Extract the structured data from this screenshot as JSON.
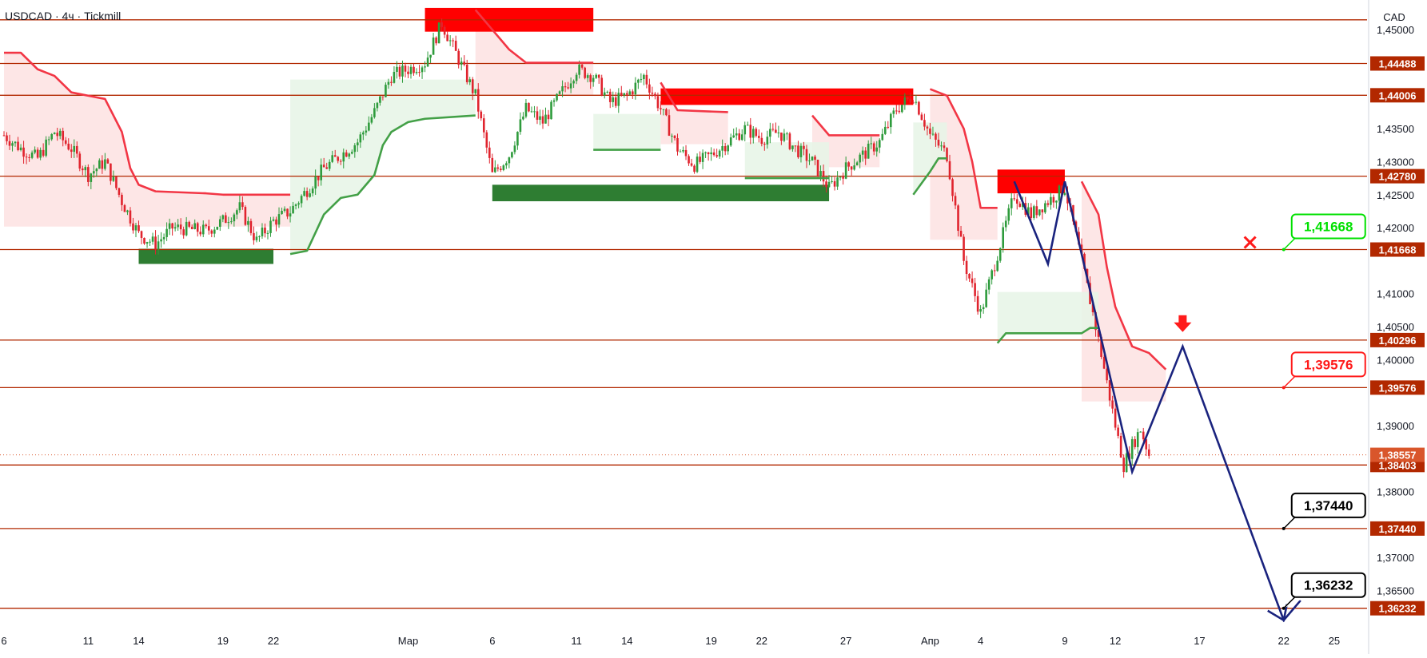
{
  "header": {
    "symbol_line": "USDCAD · 4ч · Tickmill"
  },
  "currency_label": "CAD",
  "colors": {
    "level": "#b22800",
    "up": "#2e9b3c",
    "down": "#e0242e",
    "supply": "#ff0000",
    "demand": "#2e7d32",
    "stop_up": "#43a047",
    "stop_down": "#f23645",
    "fill_down": "#fde2e2",
    "fill_up": "#e6f4e6",
    "projection": "#1a237e",
    "callout_green": "#00e000",
    "callout_red": "#ff1a1a",
    "callout_black": "#000000",
    "last_price_tag": "#d9562b"
  },
  "chart_data": {
    "type": "candlestick",
    "symbol": "USDCAD",
    "timeframe": "4ч",
    "broker": "Tickmill",
    "currency": "CAD",
    "x_axis": {
      "tick_labels": [
        "6",
        "11",
        "14",
        "19",
        "22",
        "Мар",
        "6",
        "11",
        "14",
        "19",
        "22",
        "27",
        "Апр",
        "4",
        "9",
        "12",
        "17",
        "22",
        "25"
      ],
      "range_dates": [
        "2024-02-06",
        "2024-04-26"
      ]
    },
    "y_axis": {
      "range": [
        1.3595,
        1.4545
      ],
      "tick_labels": [
        "1,45000",
        "1,43500",
        "1,43000",
        "1,42500",
        "1,42000",
        "1,41000",
        "1,40500",
        "1,40000",
        "1,39000",
        "1,38000",
        "1,37000",
        "1,36500"
      ],
      "tick_values": [
        1.45,
        1.435,
        1.43,
        1.425,
        1.42,
        1.41,
        1.405,
        1.4,
        1.39,
        1.38,
        1.37,
        1.365
      ]
    },
    "levels": [
      {
        "value": 1.4515,
        "label": ""
      },
      {
        "value": 1.44488,
        "label": "1,44488"
      },
      {
        "value": 1.44006,
        "label": "1,44006"
      },
      {
        "value": 1.4278,
        "label": "1,42780"
      },
      {
        "value": 1.41668,
        "label": "1,41668"
      },
      {
        "value": 1.40296,
        "label": "1,40296"
      },
      {
        "value": 1.39576,
        "label": "1,39576"
      },
      {
        "value": 1.38403,
        "label": "1,38403"
      },
      {
        "value": 1.3744,
        "label": "1,37440"
      },
      {
        "value": 1.36232,
        "label": "1,36232"
      }
    ],
    "last_price": {
      "value": 1.38557,
      "label": "1,38557"
    },
    "callouts": [
      {
        "label": "1,41668",
        "value": 1.41668,
        "color": "green",
        "x_date": "2024-04-22",
        "marker": "cross",
        "marker_date": "2024-04-20"
      },
      {
        "label": "1,39576",
        "value": 1.39576,
        "color": "red",
        "x_date": "2024-04-22"
      },
      {
        "label": "1,37440",
        "value": 1.3744,
        "color": "black",
        "x_date": "2024-04-22"
      },
      {
        "label": "1,36232",
        "value": 1.36232,
        "color": "black",
        "x_date": "2024-04-22"
      }
    ],
    "zones": [
      {
        "kind": "supply",
        "from": "2024-03-02",
        "to": "2024-03-12",
        "top": 1.4533,
        "bottom": 1.4497
      },
      {
        "kind": "supply",
        "from": "2024-03-16",
        "to": "2024-03-31",
        "top": 1.4411,
        "bottom": 1.4386
      },
      {
        "kind": "supply",
        "from": "2024-04-05",
        "to": "2024-04-09",
        "top": 1.4288,
        "bottom": 1.4252
      },
      {
        "kind": "demand",
        "from": "2024-02-14",
        "to": "2024-02-22",
        "top": 1.4168,
        "bottom": 1.4145
      },
      {
        "kind": "demand",
        "from": "2024-03-06",
        "to": "2024-03-26",
        "top": 1.4265,
        "bottom": 1.424
      }
    ],
    "stop_lines": {
      "down": [
        [
          [
            "2024-02-06",
            1.4465
          ],
          [
            "2024-02-07",
            1.4465
          ],
          [
            "2024-02-08",
            1.444
          ],
          [
            "2024-02-09",
            1.443
          ],
          [
            "2024-02-10",
            1.4405
          ],
          [
            "2024-02-12",
            1.4395
          ],
          [
            "2024-02-13",
            1.4345
          ],
          [
            "2024-02-13T12",
            1.429
          ],
          [
            "2024-02-14",
            1.4265
          ],
          [
            "2024-02-15",
            1.4255
          ],
          [
            "2024-02-18",
            1.4252
          ],
          [
            "2024-02-19",
            1.425
          ],
          [
            "2024-02-23",
            1.425
          ]
        ],
        [
          [
            "2024-03-05",
            1.453
          ],
          [
            "2024-03-06",
            1.45
          ],
          [
            "2024-03-07",
            1.447
          ],
          [
            "2024-03-08",
            1.445
          ],
          [
            "2024-03-12",
            1.445
          ]
        ],
        [
          [
            "2024-03-16",
            1.442
          ],
          [
            "2024-03-17",
            1.4378
          ],
          [
            "2024-03-20",
            1.4375
          ]
        ],
        [
          [
            "2024-03-25",
            1.437
          ],
          [
            "2024-03-26",
            1.434
          ],
          [
            "2024-03-29",
            1.434
          ]
        ],
        [
          [
            "2024-04-01",
            1.441
          ],
          [
            "2024-04-02",
            1.44
          ],
          [
            "2024-04-03",
            1.435
          ],
          [
            "2024-04-03T12",
            1.43
          ],
          [
            "2024-04-04",
            1.423
          ],
          [
            "2024-04-05",
            1.423
          ]
        ],
        [
          [
            "2024-04-10",
            1.427
          ],
          [
            "2024-04-11",
            1.422
          ],
          [
            "2024-04-11T12",
            1.414
          ],
          [
            "2024-04-12",
            1.408
          ],
          [
            "2024-04-13",
            1.402
          ],
          [
            "2024-04-14",
            1.401
          ],
          [
            "2024-04-15",
            1.3985
          ]
        ]
      ],
      "up": [
        [
          [
            "2024-02-23",
            1.416
          ],
          [
            "2024-02-24",
            1.4165
          ],
          [
            "2024-02-25",
            1.422
          ],
          [
            "2024-02-26",
            1.4245
          ],
          [
            "2024-02-27",
            1.425
          ],
          [
            "2024-02-28",
            1.428
          ],
          [
            "2024-02-28T12",
            1.4325
          ],
          [
            "2024-02-29",
            1.4345
          ],
          [
            "2024-03-01",
            1.436
          ],
          [
            "2024-03-02",
            1.4365
          ],
          [
            "2024-03-05",
            1.437
          ]
        ],
        [
          [
            "2024-03-12",
            1.4318
          ],
          [
            "2024-03-16",
            1.4318
          ]
        ],
        [
          [
            "2024-03-21",
            1.4275
          ],
          [
            "2024-03-26",
            1.4275
          ]
        ],
        [
          [
            "2024-03-31",
            1.425
          ],
          [
            "2024-04-01",
            1.4285
          ],
          [
            "2024-04-01T12",
            1.4305
          ],
          [
            "2024-04-02",
            1.4305
          ]
        ],
        [
          [
            "2024-04-05",
            1.4025
          ],
          [
            "2024-04-05T12",
            1.404
          ],
          [
            "2024-04-10",
            1.404
          ],
          [
            "2024-04-10T12",
            1.4048
          ],
          [
            "2024-04-11",
            1.4048
          ]
        ]
      ]
    },
    "projection_path": [
      [
        "2024-04-06",
        1.427
      ],
      [
        "2024-04-08",
        1.4145
      ],
      [
        "2024-04-09",
        1.427
      ],
      [
        "2024-04-13",
        1.383
      ],
      [
        "2024-04-16",
        1.402
      ],
      [
        "2024-04-22",
        1.3605
      ],
      [
        "2024-04-23",
        1.3635
      ]
    ],
    "arrow_marker": {
      "date": "2024-04-16",
      "value": 1.4037,
      "direction": "down"
    },
    "candles_anchor_path": [
      [
        "2024-02-06",
        1.434
      ],
      [
        "2024-02-07",
        1.432
      ],
      [
        "2024-02-08",
        1.4305
      ],
      [
        "2024-02-09",
        1.4345
      ],
      [
        "2024-02-10",
        1.432
      ],
      [
        "2024-02-11",
        1.428
      ],
      [
        "2024-02-12",
        1.43
      ],
      [
        "2024-02-13",
        1.424
      ],
      [
        "2024-02-14",
        1.419
      ],
      [
        "2024-02-15",
        1.4175
      ],
      [
        "2024-02-16",
        1.42
      ],
      [
        "2024-02-18",
        1.4195
      ],
      [
        "2024-02-19",
        1.421
      ],
      [
        "2024-02-20",
        1.423
      ],
      [
        "2024-02-21",
        1.418
      ],
      [
        "2024-02-22",
        1.421
      ],
      [
        "2024-02-23",
        1.4225
      ],
      [
        "2024-02-25",
        1.429
      ],
      [
        "2024-02-27",
        1.433
      ],
      [
        "2024-02-28",
        1.4375
      ],
      [
        "2024-02-29",
        1.443
      ],
      [
        "2024-03-01",
        1.444
      ],
      [
        "2024-03-02",
        1.445
      ],
      [
        "2024-03-03",
        1.451
      ],
      [
        "2024-03-04",
        1.4455
      ],
      [
        "2024-03-05",
        1.44
      ],
      [
        "2024-03-06",
        1.428
      ],
      [
        "2024-03-07",
        1.431
      ],
      [
        "2024-03-08",
        1.438
      ],
      [
        "2024-03-09",
        1.436
      ],
      [
        "2024-03-11",
        1.444
      ],
      [
        "2024-03-12",
        1.443
      ],
      [
        "2024-03-13",
        1.439
      ],
      [
        "2024-03-14",
        1.44
      ],
      [
        "2024-03-15",
        1.443
      ],
      [
        "2024-03-16",
        1.438
      ],
      [
        "2024-03-17",
        1.432
      ],
      [
        "2024-03-18",
        1.4295
      ],
      [
        "2024-03-19",
        1.431
      ],
      [
        "2024-03-20",
        1.433
      ],
      [
        "2024-03-21",
        1.435
      ],
      [
        "2024-03-22",
        1.4335
      ],
      [
        "2024-03-23",
        1.4345
      ],
      [
        "2024-03-24",
        1.432
      ],
      [
        "2024-03-25",
        1.43
      ],
      [
        "2024-03-26",
        1.426
      ],
      [
        "2024-03-27",
        1.429
      ],
      [
        "2024-03-28",
        1.431
      ],
      [
        "2024-03-29",
        1.433
      ],
      [
        "2024-03-30",
        1.438
      ],
      [
        "2024-03-31",
        1.44
      ],
      [
        "2024-04-01",
        1.434
      ],
      [
        "2024-04-02",
        1.431
      ],
      [
        "2024-04-03",
        1.415
      ],
      [
        "2024-04-04",
        1.407
      ],
      [
        "2024-04-05",
        1.416
      ],
      [
        "2024-04-06",
        1.425
      ],
      [
        "2024-04-07",
        1.422
      ],
      [
        "2024-04-08",
        1.424
      ],
      [
        "2024-04-09",
        1.426
      ],
      [
        "2024-04-10",
        1.415
      ],
      [
        "2024-04-11",
        1.403
      ],
      [
        "2024-04-12",
        1.39
      ],
      [
        "2024-04-12T12",
        1.384
      ],
      [
        "2024-04-13",
        1.387
      ],
      [
        "2024-04-13T12",
        1.3895
      ],
      [
        "2024-04-14",
        1.3856
      ]
    ]
  }
}
